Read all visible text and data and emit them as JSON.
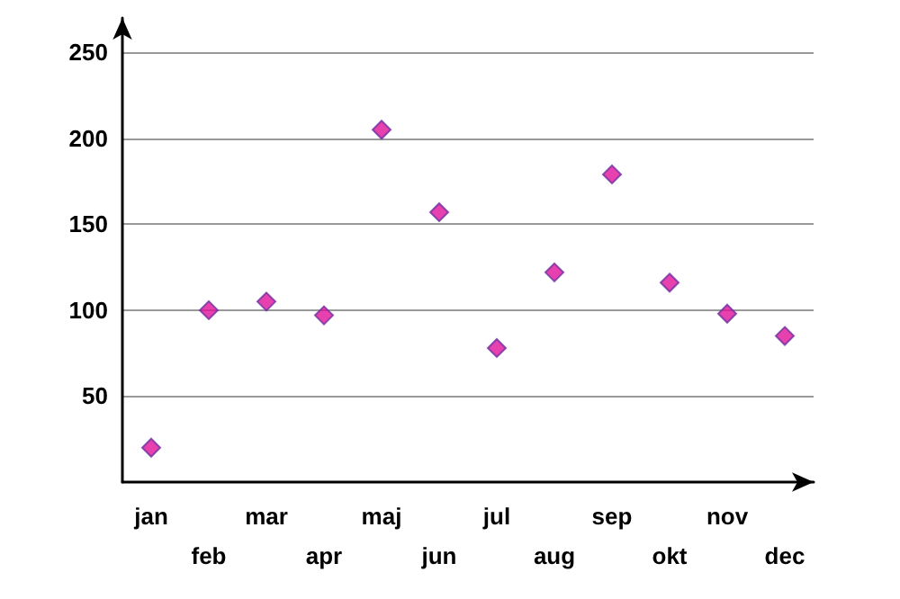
{
  "chart_data": {
    "type": "scatter",
    "categories": [
      "jan",
      "feb",
      "mar",
      "apr",
      "maj",
      "jun",
      "jul",
      "aug",
      "sep",
      "okt",
      "nov",
      "dec"
    ],
    "values": [
      20,
      100,
      105,
      97,
      205,
      157,
      78,
      122,
      179,
      116,
      98,
      85
    ],
    "color": "#e0129a",
    "marker": "diamond",
    "ylim": [
      0,
      270
    ],
    "yticks": [
      50,
      100,
      150,
      200,
      250
    ],
    "grid": "y"
  }
}
